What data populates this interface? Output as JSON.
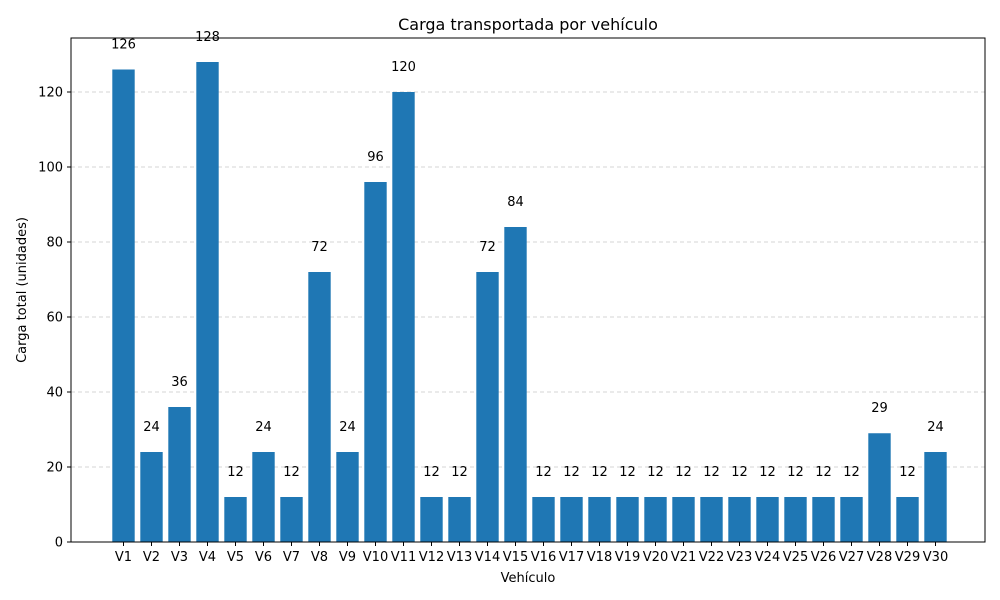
{
  "chart_data": {
    "type": "bar",
    "title": "Carga transportada por vehículo",
    "xlabel": "Vehículo",
    "ylabel": "Carga total (unidades)",
    "categories": [
      "V1",
      "V2",
      "V3",
      "V4",
      "V5",
      "V6",
      "V7",
      "V8",
      "V9",
      "V10",
      "V11",
      "V12",
      "V13",
      "V14",
      "V15",
      "V16",
      "V17",
      "V18",
      "V19",
      "V20",
      "V21",
      "V22",
      "V23",
      "V24",
      "V25",
      "V26",
      "V27",
      "V28",
      "V29",
      "V30"
    ],
    "values": [
      126,
      24,
      36,
      128,
      12,
      24,
      12,
      72,
      24,
      96,
      120,
      12,
      12,
      72,
      84,
      12,
      12,
      12,
      12,
      12,
      12,
      12,
      12,
      12,
      12,
      12,
      12,
      29,
      12,
      24
    ],
    "ylim": [
      0,
      134.4
    ],
    "yticks": [
      0,
      20,
      40,
      60,
      80,
      100,
      120
    ],
    "grid": "y",
    "bar_color": "#1f77b4"
  }
}
